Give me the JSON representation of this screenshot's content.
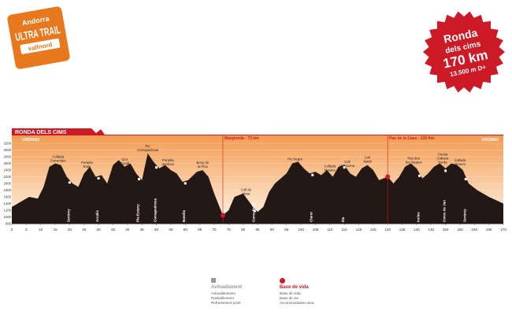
{
  "logo": {
    "top_text": "Andorra",
    "main_text": "ULTRA TRAIL",
    "brand": "vallnord",
    "color": "#e8781e"
  },
  "badge": {
    "line1": "Ronda",
    "line2": "dels cims",
    "line3": "170 km",
    "line4": "13.500 m D+",
    "color": "#cc1a26"
  },
  "profile": {
    "title": "RONDA DELS CIMS",
    "start_label": "ORDINO",
    "end_label": "ORDINO",
    "gradient_top": "#f39c52",
    "gradient_bottom": "#fff4e6",
    "markers": [
      {
        "text": "Margineda - 73 km",
        "km": 73
      },
      {
        "text": "Pas de la Casa - 130 Km",
        "km": 130
      }
    ],
    "peaks": [
      {
        "text": "Collada\nFerreroles",
        "km": 16
      },
      {
        "text": "Portella\nRialp",
        "km": 26
      },
      {
        "text": "Clot\nCavall",
        "km": 39
      },
      {
        "text": "Pic\nComapedrosa",
        "km": 47
      },
      {
        "text": "Portella\nSanfons",
        "km": 54
      },
      {
        "text": "Bony de\nla Pica",
        "km": 66
      },
      {
        "text": "Coll de\nMaia",
        "km": 81
      },
      {
        "text": "Pic Negre",
        "km": 98
      },
      {
        "text": "Collada\nMaiana",
        "km": 110
      },
      {
        "text": "Coll\nValtiverna",
        "km": 116
      },
      {
        "text": "Coll\nIlandi",
        "km": 123
      },
      {
        "text": "Pas des\nles Vaques",
        "km": 139
      },
      {
        "text": "Cresta\nCabana\nSorda",
        "km": 149
      },
      {
        "text": "Collada\nMeners",
        "km": 155
      }
    ],
    "refuges": [
      {
        "text": "Sorteny",
        "km": 20
      },
      {
        "text": "Arcalis",
        "km": 30
      },
      {
        "text": "Pla Estany",
        "km": 44
      },
      {
        "text": "Comapedrosa",
        "km": 50
      },
      {
        "text": "Botella",
        "km": 60
      },
      {
        "text": "Coms Bella",
        "km": 84
      },
      {
        "text": "Claror",
        "km": 104
      },
      {
        "text": "Illa",
        "km": 115
      },
      {
        "text": "Incles",
        "km": 141
      },
      {
        "text": "Coms de Jan",
        "km": 150
      },
      {
        "text": "Sorteny",
        "km": 157
      }
    ],
    "base_points_km": [
      73,
      130
    ],
    "y_ticks": [
      "3200",
      "3000",
      "2800",
      "2600",
      "2400",
      "2200",
      "2000",
      "1800",
      "1600",
      "1400",
      "1200",
      "1000",
      "800"
    ],
    "x_ticks": [
      "0",
      "5",
      "10",
      "15",
      "20",
      "25",
      "30",
      "35",
      "40",
      "45",
      "50",
      "55",
      "60",
      "65",
      "70",
      "75",
      "80",
      "85",
      "90",
      "95",
      "100",
      "105",
      "110",
      "115",
      "120",
      "125",
      "130",
      "135",
      "140",
      "145",
      "150",
      "155",
      "160",
      "165",
      "170"
    ],
    "profile_points": [
      [
        0,
        1300
      ],
      [
        3,
        1450
      ],
      [
        6,
        1600
      ],
      [
        9,
        1550
      ],
      [
        11,
        1900
      ],
      [
        13,
        2500
      ],
      [
        15,
        2600
      ],
      [
        17,
        2550
      ],
      [
        19,
        2200
      ],
      [
        21,
        2000
      ],
      [
        23,
        1900
      ],
      [
        25,
        2300
      ],
      [
        27,
        2500
      ],
      [
        29,
        2200
      ],
      [
        31,
        2250
      ],
      [
        33,
        2000
      ],
      [
        35,
        2550
      ],
      [
        37,
        2700
      ],
      [
        39,
        2500
      ],
      [
        41,
        2600
      ],
      [
        43,
        2300
      ],
      [
        45,
        2100
      ],
      [
        47,
        2900
      ],
      [
        49,
        2650
      ],
      [
        51,
        2450
      ],
      [
        53,
        2550
      ],
      [
        55,
        2400
      ],
      [
        57,
        2300
      ],
      [
        59,
        2050
      ],
      [
        61,
        2100
      ],
      [
        64,
        2350
      ],
      [
        66,
        2400
      ],
      [
        68,
        2200
      ],
      [
        70,
        1700
      ],
      [
        73,
        1050
      ],
      [
        75,
        1200
      ],
      [
        77,
        1600
      ],
      [
        80,
        1700
      ],
      [
        83,
        1350
      ],
      [
        85,
        1150
      ],
      [
        87,
        1300
      ],
      [
        89,
        1750
      ],
      [
        91,
        2000
      ],
      [
        93,
        2150
      ],
      [
        95,
        2300
      ],
      [
        97,
        2600
      ],
      [
        99,
        2650
      ],
      [
        101,
        2450
      ],
      [
        103,
        2300
      ],
      [
        105,
        2350
      ],
      [
        107,
        2250
      ],
      [
        109,
        2400
      ],
      [
        111,
        2200
      ],
      [
        113,
        2500
      ],
      [
        115,
        2550
      ],
      [
        117,
        2300
      ],
      [
        119,
        2200
      ],
      [
        121,
        2450
      ],
      [
        123,
        2550
      ],
      [
        125,
        2400
      ],
      [
        127,
        2100
      ],
      [
        130,
        2200
      ],
      [
        132,
        2000
      ],
      [
        134,
        2200
      ],
      [
        136,
        2500
      ],
      [
        138,
        2600
      ],
      [
        140,
        2450
      ],
      [
        142,
        2150
      ],
      [
        144,
        2300
      ],
      [
        146,
        2500
      ],
      [
        148,
        2600
      ],
      [
        150,
        2450
      ],
      [
        152,
        2600
      ],
      [
        154,
        2550
      ],
      [
        156,
        2400
      ],
      [
        158,
        2000
      ],
      [
        161,
        1800
      ],
      [
        165,
        1600
      ],
      [
        170,
        1400
      ]
    ]
  },
  "legend": {
    "aid_title": "Avituallament",
    "aid_lines": [
      "Avituallamiento",
      "Ravitaillement",
      "Refreshment point"
    ],
    "base_title": "Base de vida",
    "base_lines": [
      "Base de vida",
      "Base de vie",
      "Accommodation area"
    ],
    "aid_color": "#9a9a9a",
    "base_color": "#cc1a26"
  }
}
